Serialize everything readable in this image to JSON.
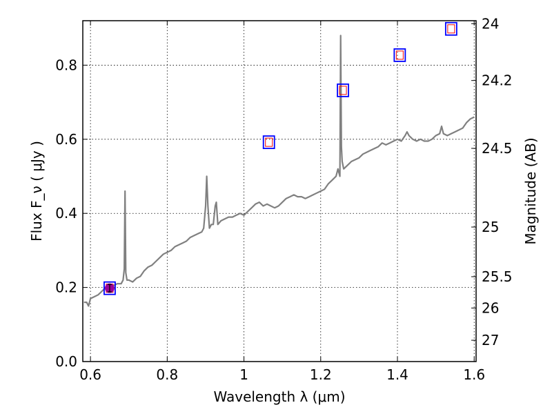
{
  "chart_data": {
    "type": "line",
    "xlabel": "Wavelength  λ (μm)",
    "ylabel": "Flux  F_ν  ( μJy )",
    "ylabel_right": "Magnitude (AB)",
    "xlim": [
      0.58,
      1.605
    ],
    "ylim": [
      0,
      0.92
    ],
    "grid": true,
    "x_ticks": [
      {
        "value": 0.6,
        "label": "0.6"
      },
      {
        "value": 0.8,
        "label": "0.8"
      },
      {
        "value": 1.0,
        "label": "1"
      },
      {
        "value": 1.2,
        "label": "1.2"
      },
      {
        "value": 1.4,
        "label": "1.4"
      },
      {
        "value": 1.6,
        "label": "1.6"
      }
    ],
    "y_ticks": [
      {
        "value": 0.0,
        "label": "0.0"
      },
      {
        "value": 0.2,
        "label": "0.2"
      },
      {
        "value": 0.4,
        "label": "0.4"
      },
      {
        "value": 0.6,
        "label": "0.6"
      },
      {
        "value": 0.8,
        "label": "0.8"
      }
    ],
    "right_ticks": [
      {
        "value": 24,
        "label": "24"
      },
      {
        "value": 24.2,
        "label": "24.2"
      },
      {
        "value": 24.5,
        "label": "24.5"
      },
      {
        "value": 25,
        "label": "25"
      },
      {
        "value": 25.5,
        "label": "25.5"
      },
      {
        "value": 26,
        "label": "26"
      },
      {
        "value": 27,
        "label": "27"
      }
    ],
    "spectrum": {
      "color": "#808080",
      "x": [
        0.583,
        0.59,
        0.595,
        0.6,
        0.61,
        0.62,
        0.63,
        0.64,
        0.65,
        0.66,
        0.67,
        0.68,
        0.685,
        0.688,
        0.69,
        0.692,
        0.695,
        0.7,
        0.71,
        0.72,
        0.73,
        0.74,
        0.75,
        0.76,
        0.77,
        0.78,
        0.79,
        0.8,
        0.81,
        0.82,
        0.83,
        0.84,
        0.85,
        0.86,
        0.87,
        0.88,
        0.89,
        0.895,
        0.9,
        0.903,
        0.906,
        0.91,
        0.915,
        0.92,
        0.925,
        0.928,
        0.932,
        0.94,
        0.95,
        0.96,
        0.97,
        0.98,
        0.99,
        1.0,
        1.01,
        1.02,
        1.03,
        1.04,
        1.05,
        1.06,
        1.07,
        1.08,
        1.09,
        1.1,
        1.11,
        1.12,
        1.13,
        1.14,
        1.15,
        1.16,
        1.17,
        1.18,
        1.19,
        1.2,
        1.21,
        1.22,
        1.23,
        1.24,
        1.245,
        1.25,
        1.252,
        1.254,
        1.256,
        1.26,
        1.27,
        1.28,
        1.29,
        1.3,
        1.31,
        1.32,
        1.33,
        1.34,
        1.35,
        1.36,
        1.37,
        1.38,
        1.39,
        1.4,
        1.41,
        1.42,
        1.425,
        1.43,
        1.44,
        1.45,
        1.46,
        1.47,
        1.48,
        1.49,
        1.5,
        1.51,
        1.515,
        1.52,
        1.53,
        1.54,
        1.55,
        1.56,
        1.57,
        1.58,
        1.59,
        1.6
      ],
      "y": [
        0.16,
        0.16,
        0.15,
        0.17,
        0.175,
        0.18,
        0.19,
        0.2,
        0.195,
        0.205,
        0.21,
        0.21,
        0.22,
        0.25,
        0.46,
        0.24,
        0.22,
        0.22,
        0.215,
        0.225,
        0.23,
        0.245,
        0.255,
        0.26,
        0.27,
        0.28,
        0.29,
        0.295,
        0.3,
        0.31,
        0.315,
        0.32,
        0.325,
        0.335,
        0.34,
        0.345,
        0.35,
        0.36,
        0.42,
        0.5,
        0.42,
        0.36,
        0.37,
        0.37,
        0.42,
        0.43,
        0.37,
        0.38,
        0.385,
        0.39,
        0.39,
        0.395,
        0.4,
        0.395,
        0.405,
        0.415,
        0.425,
        0.43,
        0.42,
        0.425,
        0.42,
        0.415,
        0.42,
        0.43,
        0.44,
        0.445,
        0.45,
        0.445,
        0.445,
        0.44,
        0.445,
        0.45,
        0.455,
        0.46,
        0.465,
        0.48,
        0.49,
        0.5,
        0.52,
        0.5,
        0.88,
        0.58,
        0.54,
        0.52,
        0.53,
        0.54,
        0.545,
        0.55,
        0.56,
        0.565,
        0.57,
        0.575,
        0.58,
        0.59,
        0.585,
        0.59,
        0.595,
        0.6,
        0.595,
        0.61,
        0.62,
        0.61,
        0.6,
        0.595,
        0.6,
        0.595,
        0.595,
        0.6,
        0.61,
        0.615,
        0.635,
        0.615,
        0.61,
        0.615,
        0.62,
        0.625,
        0.63,
        0.645,
        0.655,
        0.66
      ]
    },
    "photometry": [
      {
        "x": 0.65,
        "y": 0.198
      },
      {
        "x": 1.065,
        "y": 0.592
      },
      {
        "x": 1.258,
        "y": 0.732
      },
      {
        "x": 1.406,
        "y": 0.827
      },
      {
        "x": 1.54,
        "y": 0.898
      }
    ],
    "observed": [
      {
        "x": 0.65,
        "y": 0.198,
        "err_low": 0.188,
        "err_high": 0.208
      }
    ],
    "colors": {
      "spectrum": "#808080",
      "box_outer": "#0000ff",
      "box_inner": "#ff0000",
      "marker": "#990099",
      "grid": "#000000"
    }
  }
}
